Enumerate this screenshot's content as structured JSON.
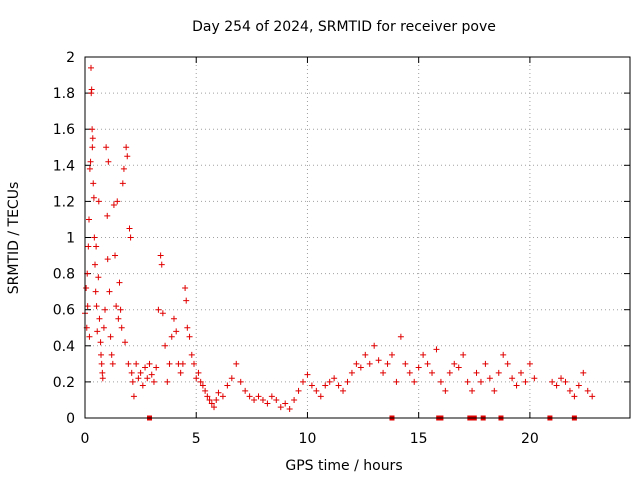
{
  "chart_data": {
    "type": "scatter",
    "title": "Day 254 of 2024, SRMTID for receiver pove",
    "xlabel": "GPS time / hours",
    "ylabel": "SRMTID / TECUs",
    "xlim": [
      0,
      24.5
    ],
    "ylim": [
      0,
      2
    ],
    "xticks": [
      0,
      5,
      10,
      15,
      20
    ],
    "xtick_labels": [
      "0",
      "5",
      "10",
      "15",
      "20"
    ],
    "yticks": [
      0,
      0.2,
      0.4,
      0.6,
      0.8,
      1,
      1.2,
      1.4,
      1.6,
      1.8,
      2
    ],
    "ytick_labels": [
      "0",
      "0.2",
      "0.4",
      "0.6",
      "0.8",
      "1",
      "1.2",
      "1.4",
      "1.6",
      "1.8",
      "2"
    ],
    "grid": true,
    "marker": "+",
    "color": "#e00000",
    "series": [
      {
        "name": "SRMTID",
        "points": [
          [
            0.0,
            0.58
          ],
          [
            0.05,
            0.72
          ],
          [
            0.08,
            0.5
          ],
          [
            0.1,
            0.8
          ],
          [
            0.12,
            0.62
          ],
          [
            0.15,
            0.95
          ],
          [
            0.18,
            1.1
          ],
          [
            0.2,
            0.45
          ],
          [
            0.22,
            1.38
          ],
          [
            0.25,
            1.42
          ],
          [
            0.27,
            1.94
          ],
          [
            0.28,
            1.8
          ],
          [
            0.3,
            1.82
          ],
          [
            0.32,
            1.6
          ],
          [
            0.33,
            1.5
          ],
          [
            0.35,
            1.55
          ],
          [
            0.37,
            1.3
          ],
          [
            0.4,
            1.22
          ],
          [
            0.42,
            1.0
          ],
          [
            0.45,
            0.85
          ],
          [
            0.48,
            0.7
          ],
          [
            0.5,
            0.95
          ],
          [
            0.52,
            0.62
          ],
          [
            0.55,
            0.48
          ],
          [
            0.6,
            0.78
          ],
          [
            0.62,
            1.2
          ],
          [
            0.65,
            0.55
          ],
          [
            0.7,
            0.42
          ],
          [
            0.72,
            0.35
          ],
          [
            0.75,
            0.3
          ],
          [
            0.78,
            0.25
          ],
          [
            0.8,
            0.22
          ],
          [
            0.85,
            0.5
          ],
          [
            0.9,
            0.6
          ],
          [
            0.95,
            1.5
          ],
          [
            1.0,
            1.12
          ],
          [
            1.02,
            0.88
          ],
          [
            1.05,
            1.42
          ],
          [
            1.1,
            0.7
          ],
          [
            1.15,
            0.45
          ],
          [
            1.2,
            0.35
          ],
          [
            1.25,
            0.3
          ],
          [
            1.3,
            1.18
          ],
          [
            1.35,
            0.9
          ],
          [
            1.4,
            0.62
          ],
          [
            1.45,
            1.2
          ],
          [
            1.5,
            0.55
          ],
          [
            1.55,
            0.75
          ],
          [
            1.6,
            0.6
          ],
          [
            1.65,
            0.5
          ],
          [
            1.7,
            1.3
          ],
          [
            1.75,
            1.38
          ],
          [
            1.8,
            0.42
          ],
          [
            1.85,
            1.5
          ],
          [
            1.9,
            1.45
          ],
          [
            1.95,
            0.3
          ],
          [
            2.0,
            1.05
          ],
          [
            2.05,
            1.0
          ],
          [
            2.1,
            0.25
          ],
          [
            2.15,
            0.2
          ],
          [
            2.2,
            0.12
          ],
          [
            2.3,
            0.3
          ],
          [
            2.4,
            0.22
          ],
          [
            2.5,
            0.25
          ],
          [
            2.6,
            0.18
          ],
          [
            2.7,
            0.28
          ],
          [
            2.8,
            0.22
          ],
          [
            2.9,
            0.3
          ],
          [
            3.0,
            0.24
          ],
          [
            3.1,
            0.2
          ],
          [
            3.2,
            0.28
          ],
          [
            3.3,
            0.6
          ],
          [
            3.4,
            0.9
          ],
          [
            3.45,
            0.85
          ],
          [
            3.5,
            0.58
          ],
          [
            3.6,
            0.4
          ],
          [
            3.7,
            0.2
          ],
          [
            3.8,
            0.3
          ],
          [
            3.9,
            0.45
          ],
          [
            4.0,
            0.55
          ],
          [
            4.1,
            0.48
          ],
          [
            4.2,
            0.3
          ],
          [
            4.3,
            0.25
          ],
          [
            4.4,
            0.3
          ],
          [
            4.5,
            0.72
          ],
          [
            4.55,
            0.65
          ],
          [
            4.6,
            0.5
          ],
          [
            4.7,
            0.45
          ],
          [
            4.8,
            0.35
          ],
          [
            4.9,
            0.3
          ],
          [
            5.0,
            0.22
          ],
          [
            5.1,
            0.25
          ],
          [
            5.2,
            0.2
          ],
          [
            5.3,
            0.18
          ],
          [
            5.4,
            0.15
          ],
          [
            5.5,
            0.12
          ],
          [
            5.6,
            0.1
          ],
          [
            5.7,
            0.08
          ],
          [
            5.8,
            0.06
          ],
          [
            5.9,
            0.1
          ],
          [
            6.0,
            0.14
          ],
          [
            6.2,
            0.12
          ],
          [
            6.4,
            0.18
          ],
          [
            6.6,
            0.22
          ],
          [
            6.8,
            0.3
          ],
          [
            7.0,
            0.2
          ],
          [
            7.2,
            0.15
          ],
          [
            7.4,
            0.12
          ],
          [
            7.6,
            0.1
          ],
          [
            7.8,
            0.12
          ],
          [
            8.0,
            0.1
          ],
          [
            8.2,
            0.08
          ],
          [
            8.4,
            0.12
          ],
          [
            8.6,
            0.1
          ],
          [
            8.8,
            0.06
          ],
          [
            9.0,
            0.08
          ],
          [
            9.2,
            0.05
          ],
          [
            9.4,
            0.1
          ],
          [
            9.6,
            0.15
          ],
          [
            9.8,
            0.2
          ],
          [
            10.0,
            0.24
          ],
          [
            10.2,
            0.18
          ],
          [
            10.4,
            0.15
          ],
          [
            10.6,
            0.12
          ],
          [
            10.8,
            0.18
          ],
          [
            11.0,
            0.2
          ],
          [
            11.2,
            0.22
          ],
          [
            11.4,
            0.18
          ],
          [
            11.6,
            0.15
          ],
          [
            11.8,
            0.2
          ],
          [
            12.0,
            0.25
          ],
          [
            12.2,
            0.3
          ],
          [
            12.4,
            0.28
          ],
          [
            12.6,
            0.35
          ],
          [
            12.8,
            0.3
          ],
          [
            13.0,
            0.4
          ],
          [
            13.2,
            0.32
          ],
          [
            13.4,
            0.25
          ],
          [
            13.6,
            0.3
          ],
          [
            13.8,
            0.35
          ],
          [
            14.0,
            0.2
          ],
          [
            14.2,
            0.45
          ],
          [
            14.4,
            0.3
          ],
          [
            14.6,
            0.25
          ],
          [
            14.8,
            0.2
          ],
          [
            15.0,
            0.28
          ],
          [
            15.2,
            0.35
          ],
          [
            15.4,
            0.3
          ],
          [
            15.6,
            0.25
          ],
          [
            15.8,
            0.38
          ],
          [
            16.0,
            0.2
          ],
          [
            16.2,
            0.15
          ],
          [
            16.4,
            0.25
          ],
          [
            16.6,
            0.3
          ],
          [
            16.8,
            0.28
          ],
          [
            17.0,
            0.35
          ],
          [
            17.2,
            0.2
          ],
          [
            17.4,
            0.15
          ],
          [
            17.6,
            0.25
          ],
          [
            17.8,
            0.2
          ],
          [
            18.0,
            0.3
          ],
          [
            18.2,
            0.22
          ],
          [
            18.4,
            0.15
          ],
          [
            18.6,
            0.25
          ],
          [
            18.8,
            0.35
          ],
          [
            19.0,
            0.3
          ],
          [
            19.2,
            0.22
          ],
          [
            19.4,
            0.18
          ],
          [
            19.6,
            0.25
          ],
          [
            19.8,
            0.2
          ],
          [
            20.0,
            0.3
          ],
          [
            20.2,
            0.22
          ],
          [
            21.0,
            0.2
          ],
          [
            21.2,
            0.18
          ],
          [
            21.4,
            0.22
          ],
          [
            21.6,
            0.2
          ],
          [
            21.8,
            0.15
          ],
          [
            22.0,
            0.12
          ],
          [
            22.2,
            0.18
          ],
          [
            22.4,
            0.25
          ],
          [
            22.6,
            0.15
          ],
          [
            22.8,
            0.12
          ]
        ]
      }
    ],
    "zero_points": [
      {
        "x": 2.9,
        "y": 0
      },
      {
        "x": 13.8,
        "y": 0
      },
      {
        "x": 15.9,
        "y": 0
      },
      {
        "x": 16.0,
        "y": 0
      },
      {
        "x": 17.3,
        "y": 0
      },
      {
        "x": 17.5,
        "y": 0
      },
      {
        "x": 17.9,
        "y": 0
      },
      {
        "x": 18.7,
        "y": 0
      },
      {
        "x": 20.9,
        "y": 0
      },
      {
        "x": 22.0,
        "y": 0
      }
    ]
  }
}
